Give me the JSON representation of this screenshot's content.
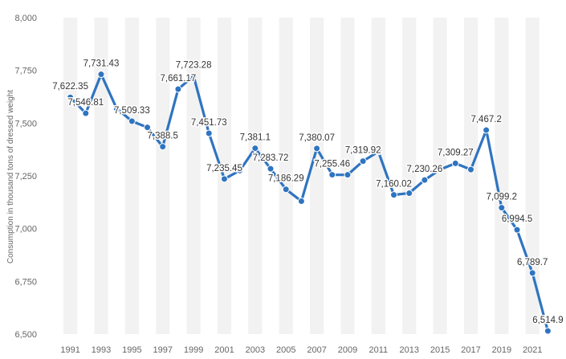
{
  "chart_data": {
    "type": "line",
    "ylabel": "Consumption in thousand tons of dressed weight",
    "xlabel": "",
    "title": "",
    "ylim": [
      6500,
      8000
    ],
    "yticks": [
      6500,
      6750,
      7000,
      7250,
      7500,
      7750,
      8000
    ],
    "ytick_labels": [
      "6,500",
      "6,750",
      "7,000",
      "7,250",
      "7,500",
      "7,750",
      "8,000"
    ],
    "xtick_labels": [
      "1991",
      "1993",
      "1995",
      "1997",
      "1999",
      "2001",
      "2003",
      "2005",
      "2007",
      "2009",
      "2011",
      "2013",
      "2015",
      "2017",
      "2019",
      "2021"
    ],
    "grid": "alternating vertical bands",
    "color": "#2f74c0",
    "points": [
      {
        "x": "1991",
        "y": 7622.35,
        "label": "7,622.35"
      },
      {
        "x": "1992",
        "y": 7546.81,
        "label": "7,546.81"
      },
      {
        "x": "1993",
        "y": 7731.43,
        "label": "7,731.43"
      },
      {
        "x": "1994",
        "y": 7570,
        "label": ""
      },
      {
        "x": "1995",
        "y": 7509.33,
        "label": "7,509.33"
      },
      {
        "x": "1996",
        "y": 7480,
        "label": ""
      },
      {
        "x": "1997",
        "y": 7388.5,
        "label": "7,388.5"
      },
      {
        "x": "1998",
        "y": 7661.17,
        "label": "7,661.17"
      },
      {
        "x": "1999",
        "y": 7723.28,
        "label": "7,723.28"
      },
      {
        "x": "2000",
        "y": 7451.73,
        "label": "7,451.73"
      },
      {
        "x": "2001",
        "y": 7235.45,
        "label": "7,235.45"
      },
      {
        "x": "2002",
        "y": 7275,
        "label": ""
      },
      {
        "x": "2003",
        "y": 7381.1,
        "label": "7,381.1"
      },
      {
        "x": "2004",
        "y": 7283.72,
        "label": "7,283.72"
      },
      {
        "x": "2005",
        "y": 7186.29,
        "label": "7,186.29"
      },
      {
        "x": "2006",
        "y": 7130,
        "label": ""
      },
      {
        "x": "2007",
        "y": 7380.07,
        "label": "7,380.07"
      },
      {
        "x": "2008",
        "y": 7255.46,
        "label": "7,255.46"
      },
      {
        "x": "2009",
        "y": 7255,
        "label": ""
      },
      {
        "x": "2010",
        "y": 7319.92,
        "label": "7,319.92"
      },
      {
        "x": "2011",
        "y": 7365,
        "label": ""
      },
      {
        "x": "2012",
        "y": 7160.02,
        "label": "7,160.02"
      },
      {
        "x": "2013",
        "y": 7168,
        "label": ""
      },
      {
        "x": "2014",
        "y": 7230.26,
        "label": "7,230.26"
      },
      {
        "x": "2015",
        "y": 7280,
        "label": ""
      },
      {
        "x": "2016",
        "y": 7309.27,
        "label": "7,309.27"
      },
      {
        "x": "2017",
        "y": 7280,
        "label": ""
      },
      {
        "x": "2018",
        "y": 7467.2,
        "label": "7,467.2"
      },
      {
        "x": "2019",
        "y": 7099.2,
        "label": "7,099.2"
      },
      {
        "x": "2020",
        "y": 6994.5,
        "label": "6,994.5"
      },
      {
        "x": "2021",
        "y": 6789.7,
        "label": "6,789.7"
      },
      {
        "x": "2022",
        "y": 6514.9,
        "label": "6,514.9"
      }
    ]
  }
}
